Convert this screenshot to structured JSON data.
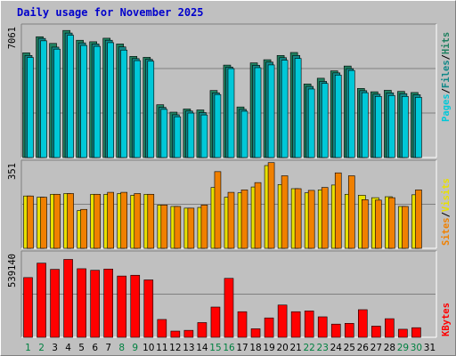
{
  "title": "Daily usage for November 2025",
  "colors": {
    "pages": "#00c8d8",
    "files": "#108888",
    "hits": "#208060",
    "sites": "#f08000",
    "visits": "#e8e000",
    "kbytes": "#ff0000",
    "title": "#0000cc",
    "weekday_label": "#000000",
    "weekend_label": "#008040"
  },
  "chart_data": [
    {
      "type": "bar",
      "name": "pages-files-hits",
      "ymax_label": "7061",
      "ymax": 7061,
      "legend": [
        "Pages",
        "/",
        "Files",
        "/",
        "Hits"
      ],
      "categories": [
        "1",
        "2",
        "3",
        "4",
        "5",
        "6",
        "7",
        "8",
        "9",
        "10",
        "11",
        "12",
        "13",
        "14",
        "15",
        "16",
        "17",
        "18",
        "19",
        "20",
        "21",
        "22",
        "23",
        "24",
        "25",
        "26",
        "27",
        "28",
        "29",
        "30",
        "31"
      ],
      "weekend_days": [
        "1",
        "2",
        "8",
        "9",
        "15",
        "16",
        "22",
        "23",
        "29",
        "30"
      ],
      "series": [
        {
          "name": "Hits",
          "values": [
            5650,
            6520,
            6160,
            6860,
            6330,
            6250,
            6440,
            6130,
            5460,
            5410,
            2850,
            2450,
            2620,
            2570,
            3620,
            4990,
            2730,
            5110,
            5280,
            5510,
            5670,
            3970,
            4280,
            4680,
            4940,
            3730,
            3550,
            3630,
            3570,
            3510,
            null
          ]
        },
        {
          "name": "Files",
          "values": [
            5510,
            6430,
            5960,
            6720,
            6190,
            6130,
            6330,
            5970,
            5340,
            5300,
            2710,
            2310,
            2510,
            2430,
            3490,
            4880,
            2600,
            4980,
            5150,
            5390,
            5510,
            3840,
            4110,
            4570,
            4800,
            3610,
            3420,
            3490,
            3450,
            3390,
            null
          ]
        },
        {
          "name": "Pages",
          "values": [
            5400,
            6300,
            5850,
            6600,
            6050,
            6000,
            6200,
            5800,
            5230,
            5200,
            2600,
            2200,
            2400,
            2300,
            3400,
            4800,
            2500,
            4850,
            5000,
            5250,
            5350,
            3700,
            4000,
            4450,
            4700,
            3500,
            3300,
            3350,
            3300,
            3250,
            null
          ]
        }
      ]
    },
    {
      "type": "bar",
      "name": "sites-visits",
      "ymax_label": "351",
      "ymax": 351,
      "legend": [
        "Sites",
        "/",
        "Visits"
      ],
      "categories": [
        "1",
        "2",
        "3",
        "4",
        "5",
        "6",
        "7",
        "8",
        "9",
        "10",
        "11",
        "12",
        "13",
        "14",
        "15",
        "16",
        "17",
        "18",
        "19",
        "20",
        "21",
        "22",
        "23",
        "24",
        "25",
        "26",
        "27",
        "28",
        "29",
        "30",
        "31"
      ],
      "series": [
        {
          "name": "Visits",
          "values": [
            215,
            210,
            222,
            225,
            155,
            222,
            222,
            225,
            218,
            222,
            178,
            172,
            165,
            168,
            250,
            210,
            228,
            252,
            340,
            262,
            245,
            228,
            240,
            260,
            222,
            218,
            208,
            212,
            172,
            220,
            null
          ]
        },
        {
          "name": "Sites",
          "values": [
            215,
            210,
            222,
            225,
            160,
            222,
            230,
            230,
            225,
            222,
            178,
            172,
            165,
            178,
            315,
            230,
            240,
            270,
            352,
            298,
            245,
            238,
            250,
            310,
            298,
            200,
            198,
            208,
            172,
            240,
            null
          ]
        }
      ]
    },
    {
      "type": "bar",
      "name": "kbytes",
      "ymax_label": "539140",
      "ymax": 539140,
      "legend": [
        "KBytes"
      ],
      "categories": [
        "1",
        "2",
        "3",
        "4",
        "5",
        "6",
        "7",
        "8",
        "9",
        "10",
        "11",
        "12",
        "13",
        "14",
        "15",
        "16",
        "17",
        "18",
        "19",
        "20",
        "21",
        "22",
        "23",
        "24",
        "25",
        "26",
        "27",
        "28",
        "29",
        "30",
        "31"
      ],
      "series": [
        {
          "name": "KBytes",
          "values": [
            385000,
            478000,
            438000,
            502000,
            442000,
            432000,
            440000,
            395000,
            400000,
            370000,
            115000,
            40000,
            45000,
            95000,
            195000,
            380000,
            165000,
            55000,
            125000,
            208000,
            165000,
            170000,
            132000,
            85000,
            90000,
            178000,
            72000,
            120000,
            52000,
            62000,
            null
          ]
        }
      ]
    }
  ]
}
